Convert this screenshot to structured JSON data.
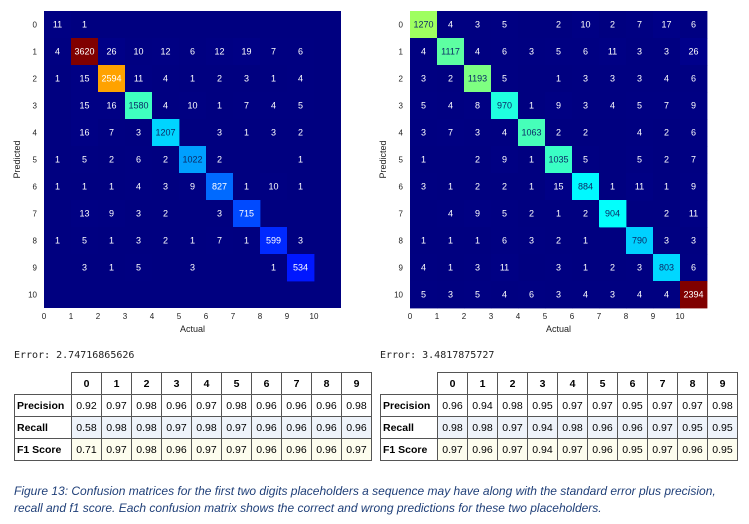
{
  "matrices": [
    {
      "title": "",
      "xlabel": "Actual",
      "ylabel": "Predicted",
      "row_labels": [
        "0",
        "1",
        "2",
        "3",
        "4",
        "5",
        "6",
        "7",
        "8",
        "9",
        "10"
      ],
      "col_labels": [
        "0",
        "1",
        "2",
        "3",
        "4",
        "5",
        "6",
        "7",
        "8",
        "9",
        "10"
      ],
      "max": 3620,
      "cells": [
        [
          "11",
          "1",
          "",
          "",
          "",
          "",
          "",
          "",
          "",
          "",
          ""
        ],
        [
          "4",
          "3620",
          "26",
          "10",
          "12",
          "6",
          "12",
          "19",
          "7",
          "6",
          ""
        ],
        [
          "1",
          "15",
          "2594",
          "11",
          "4",
          "1",
          "2",
          "3",
          "1",
          "4",
          ""
        ],
        [
          "",
          "15",
          "16",
          "1580",
          "4",
          "10",
          "1",
          "7",
          "4",
          "5",
          ""
        ],
        [
          "",
          "16",
          "7",
          "3",
          "1207",
          "",
          "3",
          "1",
          "3",
          "2",
          ""
        ],
        [
          "1",
          "5",
          "2",
          "6",
          "2",
          "1022",
          "2",
          "",
          "",
          "1",
          ""
        ],
        [
          "1",
          "1",
          "1",
          "4",
          "3",
          "9",
          "827",
          "1",
          "10",
          "1",
          ""
        ],
        [
          "",
          "13",
          "9",
          "3",
          "2",
          "",
          "3",
          "715",
          "",
          "",
          ""
        ],
        [
          "1",
          "5",
          "1",
          "3",
          "2",
          "1",
          "7",
          "1",
          "599",
          "3",
          ""
        ],
        [
          "",
          "3",
          "1",
          "5",
          "",
          "3",
          "",
          "",
          "1",
          "534",
          ""
        ],
        [
          "",
          "",
          "",
          "",
          "",
          "",
          "",
          "",
          "",
          "",
          ""
        ]
      ]
    },
    {
      "title": "",
      "xlabel": "Actual",
      "ylabel": "Predicted",
      "row_labels": [
        "0",
        "1",
        "2",
        "3",
        "4",
        "5",
        "6",
        "7",
        "8",
        "9",
        "10"
      ],
      "col_labels": [
        "0",
        "1",
        "2",
        "3",
        "4",
        "5",
        "6",
        "7",
        "8",
        "9",
        "10"
      ],
      "max": 2394,
      "cells": [
        [
          "1270",
          "4",
          "3",
          "5",
          "",
          "2",
          "10",
          "2",
          "7",
          "17",
          "6"
        ],
        [
          "4",
          "1117",
          "4",
          "6",
          "3",
          "5",
          "6",
          "11",
          "3",
          "3",
          "26"
        ],
        [
          "3",
          "2",
          "1193",
          "5",
          "",
          "1",
          "3",
          "3",
          "3",
          "4",
          "6"
        ],
        [
          "5",
          "4",
          "8",
          "970",
          "1",
          "9",
          "3",
          "4",
          "5",
          "7",
          "9"
        ],
        [
          "3",
          "7",
          "3",
          "4",
          "1063",
          "2",
          "2",
          "",
          "4",
          "2",
          "6"
        ],
        [
          "1",
          "",
          "2",
          "9",
          "1",
          "1035",
          "5",
          "",
          "5",
          "2",
          "7"
        ],
        [
          "3",
          "1",
          "2",
          "2",
          "1",
          "15",
          "884",
          "1",
          "11",
          "1",
          "9"
        ],
        [
          "",
          "4",
          "9",
          "5",
          "2",
          "1",
          "2",
          "904",
          "",
          "2",
          "11"
        ],
        [
          "1",
          "1",
          "1",
          "6",
          "3",
          "2",
          "1",
          "",
          "790",
          "3",
          "3"
        ],
        [
          "4",
          "1",
          "3",
          "11",
          "",
          "3",
          "1",
          "2",
          "3",
          "803",
          "6"
        ],
        [
          "5",
          "3",
          "5",
          "4",
          "6",
          "3",
          "4",
          "3",
          "4",
          "4",
          "2394"
        ]
      ]
    }
  ],
  "error_labels": [
    "Error: 2.74716865626",
    "Error: 3.4817875727"
  ],
  "tables": [
    {
      "header": [
        "0",
        "1",
        "2",
        "3",
        "4",
        "5",
        "6",
        "7",
        "8",
        "9"
      ],
      "rows": [
        {
          "label": "Precision",
          "values": [
            "0.92",
            "0.97",
            "0.98",
            "0.96",
            "0.97",
            "0.98",
            "0.96",
            "0.96",
            "0.96",
            "0.98"
          ]
        },
        {
          "label": "Recall",
          "values": [
            "0.58",
            "0.98",
            "0.98",
            "0.97",
            "0.98",
            "0.97",
            "0.96",
            "0.96",
            "0.96",
            "0.96"
          ]
        },
        {
          "label": "F1 Score",
          "values": [
            "0.71",
            "0.97",
            "0.98",
            "0.96",
            "0.97",
            "0.97",
            "0.96",
            "0.96",
            "0.96",
            "0.97"
          ]
        }
      ]
    },
    {
      "header": [
        "0",
        "1",
        "2",
        "3",
        "4",
        "5",
        "6",
        "7",
        "8",
        "9"
      ],
      "rows": [
        {
          "label": "Precision",
          "values": [
            "0.96",
            "0.94",
            "0.98",
            "0.95",
            "0.97",
            "0.97",
            "0.95",
            "0.97",
            "0.97",
            "0.98"
          ]
        },
        {
          "label": "Recall",
          "values": [
            "0.98",
            "0.98",
            "0.97",
            "0.94",
            "0.98",
            "0.96",
            "0.96",
            "0.97",
            "0.95",
            "0.95"
          ]
        },
        {
          "label": "F1 Score",
          "values": [
            "0.97",
            "0.96",
            "0.97",
            "0.94",
            "0.97",
            "0.96",
            "0.95",
            "0.97",
            "0.96",
            "0.95"
          ]
        }
      ]
    }
  ],
  "caption": "Figure 13: Confusion matrices for the first two digits placeholders a sequence may have along with the standard error plus precision, recall and f1 score. Each confusion matrix shows the correct and wrong predictions for these two placeholders.",
  "colors": {
    "colormap": "jet",
    "low": "#00007f",
    "high": "#7f0000"
  },
  "chart_data": [
    {
      "type": "heatmap",
      "title": "",
      "xlabel": "Actual",
      "ylabel": "Predicted",
      "x": [
        "0",
        "1",
        "2",
        "3",
        "4",
        "5",
        "6",
        "7",
        "8",
        "9",
        "10"
      ],
      "y": [
        "0",
        "1",
        "2",
        "3",
        "4",
        "5",
        "6",
        "7",
        "8",
        "9",
        "10"
      ],
      "colormap": "jet",
      "values": [
        [
          11,
          1,
          0,
          0,
          0,
          0,
          0,
          0,
          0,
          0,
          0
        ],
        [
          4,
          3620,
          26,
          10,
          12,
          6,
          12,
          19,
          7,
          6,
          0
        ],
        [
          1,
          15,
          2594,
          11,
          4,
          1,
          2,
          3,
          1,
          4,
          0
        ],
        [
          0,
          15,
          16,
          1580,
          4,
          10,
          1,
          7,
          4,
          5,
          0
        ],
        [
          0,
          16,
          7,
          3,
          1207,
          0,
          3,
          1,
          3,
          2,
          0
        ],
        [
          1,
          5,
          2,
          6,
          2,
          1022,
          2,
          0,
          0,
          1,
          0
        ],
        [
          1,
          1,
          1,
          4,
          3,
          9,
          827,
          1,
          10,
          1,
          0
        ],
        [
          0,
          13,
          9,
          3,
          2,
          0,
          3,
          715,
          0,
          0,
          0
        ],
        [
          1,
          5,
          1,
          3,
          2,
          1,
          7,
          1,
          599,
          3,
          0
        ],
        [
          0,
          3,
          1,
          5,
          0,
          3,
          0,
          0,
          1,
          534,
          0
        ],
        [
          0,
          0,
          0,
          0,
          0,
          0,
          0,
          0,
          0,
          0,
          0
        ]
      ]
    },
    {
      "type": "heatmap",
      "title": "",
      "xlabel": "Actual",
      "ylabel": "Predicted",
      "x": [
        "0",
        "1",
        "2",
        "3",
        "4",
        "5",
        "6",
        "7",
        "8",
        "9",
        "10"
      ],
      "y": [
        "0",
        "1",
        "2",
        "3",
        "4",
        "5",
        "6",
        "7",
        "8",
        "9",
        "10"
      ],
      "colormap": "jet",
      "values": [
        [
          1270,
          4,
          3,
          5,
          0,
          2,
          10,
          2,
          7,
          17,
          6
        ],
        [
          4,
          1117,
          4,
          6,
          3,
          5,
          6,
          11,
          3,
          3,
          26
        ],
        [
          3,
          2,
          1193,
          5,
          0,
          1,
          3,
          3,
          3,
          4,
          6
        ],
        [
          5,
          4,
          8,
          970,
          1,
          9,
          3,
          4,
          5,
          7,
          9
        ],
        [
          3,
          7,
          3,
          4,
          1063,
          2,
          2,
          0,
          4,
          2,
          6
        ],
        [
          1,
          0,
          2,
          9,
          1,
          1035,
          5,
          0,
          5,
          2,
          7
        ],
        [
          3,
          1,
          2,
          2,
          1,
          15,
          884,
          1,
          11,
          1,
          9
        ],
        [
          0,
          4,
          9,
          5,
          2,
          1,
          2,
          904,
          0,
          2,
          11
        ],
        [
          1,
          1,
          1,
          6,
          3,
          2,
          1,
          0,
          790,
          3,
          3
        ],
        [
          4,
          1,
          3,
          11,
          0,
          3,
          1,
          2,
          3,
          803,
          6
        ],
        [
          5,
          3,
          5,
          4,
          6,
          3,
          4,
          3,
          4,
          4,
          2394
        ]
      ]
    }
  ]
}
